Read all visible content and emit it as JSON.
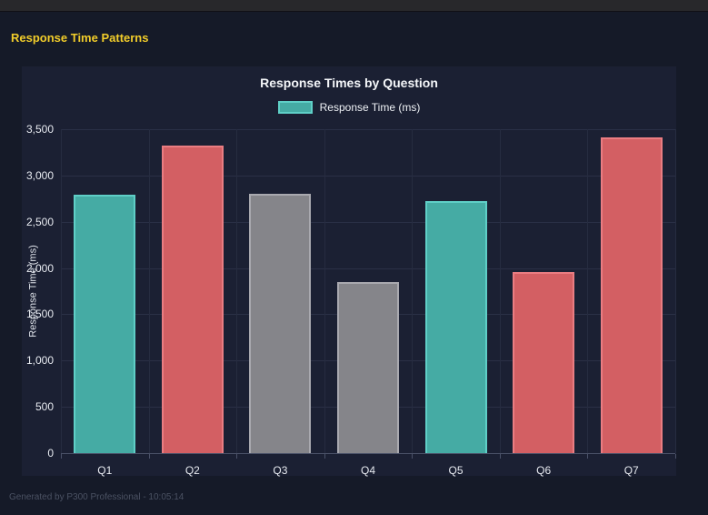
{
  "window": {
    "top_bar": true
  },
  "page": {
    "title": "Response Time Patterns",
    "title_color": "#f2cd2a",
    "footer": "Generated by P300 Professional - 10:05:14"
  },
  "chart_data": {
    "type": "bar",
    "title": "Response Times by Question",
    "xlabel": "",
    "ylabel": "Response Time (ms)",
    "categories": [
      "Q1",
      "Q2",
      "Q3",
      "Q4",
      "Q5",
      "Q6",
      "Q7"
    ],
    "values": [
      2790,
      3320,
      2800,
      1845,
      2720,
      1960,
      3410
    ],
    "bar_color_keys": [
      "teal",
      "red",
      "gray",
      "gray",
      "teal",
      "red",
      "red"
    ],
    "palette": {
      "teal": {
        "fill": "#45aba4",
        "border": "#5fcfc7"
      },
      "red": {
        "fill": "#d35f63",
        "border": "#ea7d82"
      },
      "gray": {
        "fill": "#85858a",
        "border": "#a9a9af"
      }
    },
    "ylim": [
      0,
      3500
    ],
    "ytick_step": 500,
    "ytick_labels": [
      "0",
      "500",
      "1,000",
      "1,500",
      "2,000",
      "2,500",
      "3,000",
      "3,500"
    ],
    "grid": true,
    "legend": {
      "position": "top",
      "label": "Response Time (ms)",
      "swatch_fill": "#45aba4",
      "swatch_border": "#5fcfc7"
    }
  }
}
